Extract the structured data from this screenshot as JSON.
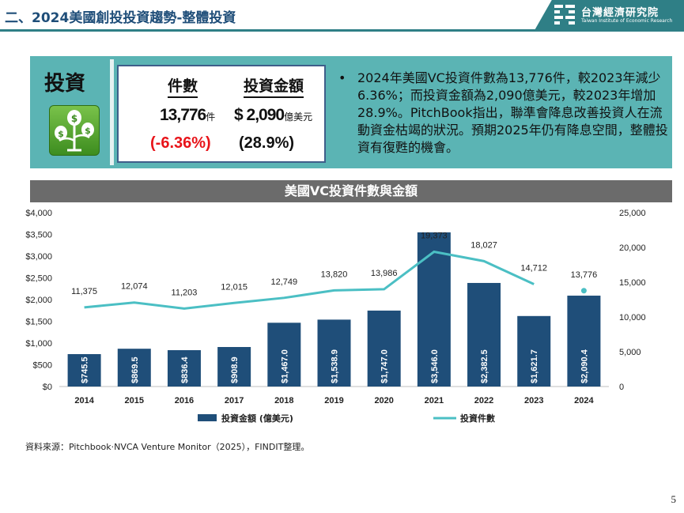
{
  "header": {
    "title": "二、2024美國創投投資趨勢-整體投資",
    "logo_cn": "台灣經濟研究院",
    "logo_en": "Taiwan Institute of Economic Research"
  },
  "summary": {
    "section_label": "投資",
    "plant_icon": "money-plant-icon",
    "count_header": "件數",
    "amount_header": "投資金額",
    "count_value": "13,776",
    "count_unit": "件",
    "amount_value": "$ 2,090",
    "amount_unit": "億美元",
    "count_change": "(-6.36%)",
    "amount_change": "(28.9%)",
    "bullet": "2024年美國VC投資件數為13,776件，較2023年減少6.36%；而投資金額為2,090億美元，較2023年增加28.9%。PitchBook指出，聯準會降息改善投資人在流動資金枯竭的狀況。預期2025年仍有降息空間，整體投資有復甦的機會。"
  },
  "colors": {
    "teal": "#5bb4b4",
    "bar": "#1f4e79",
    "line": "#4bbfc4",
    "negative": "#e8141a",
    "title_bar": "#6b6b6b"
  },
  "chart_title": "美國VC投資件數與金額",
  "chart_data": {
    "type": "bar",
    "categories": [
      "2014",
      "2015",
      "2016",
      "2017",
      "2018",
      "2019",
      "2020",
      "2021",
      "2022",
      "2023",
      "2024"
    ],
    "series": [
      {
        "name": "投資金額 (億美元)",
        "type": "bar",
        "axis": "left",
        "values": [
          745.5,
          869.5,
          836.4,
          908.9,
          1467.0,
          1538.9,
          1747.0,
          3546.0,
          2382.5,
          1621.7,
          2090.4
        ],
        "labels": [
          "$745.5",
          "$869.5",
          "$836.4",
          "$908.9",
          "$1,467.0",
          "$1,538.9",
          "$1,747.0",
          "$3,546.0",
          "$2,382.5",
          "$1,621.7",
          "$2,090.4"
        ]
      },
      {
        "name": "投資件數",
        "type": "line",
        "axis": "right",
        "values": [
          11375,
          12074,
          11203,
          12015,
          12749,
          13820,
          13986,
          19373,
          18027,
          14712,
          13776
        ],
        "labels": [
          "11,375",
          "12,074",
          "11,203",
          "12,015",
          "12,749",
          "13,820",
          "13,986",
          "19,373",
          "18,027",
          "14,712",
          "13,776"
        ]
      }
    ],
    "left_axis": {
      "min": 0,
      "max": 4000,
      "step": 500,
      "tick_labels": [
        "$0",
        "$500",
        "$1,000",
        "$1,500",
        "$2,000",
        "$2,500",
        "$3,000",
        "$3,500",
        "$4,000"
      ]
    },
    "right_axis": {
      "min": 0,
      "max": 25000,
      "step": 5000,
      "tick_labels": [
        "0",
        "5,000",
        "10,000",
        "15,000",
        "20,000",
        "25,000"
      ]
    },
    "grid": false,
    "legend_position": "bottom"
  },
  "source": "資料來源：Pitchbook‧NVCA Venture Monitor（2025），FINDIT整理。",
  "page_number": "5"
}
